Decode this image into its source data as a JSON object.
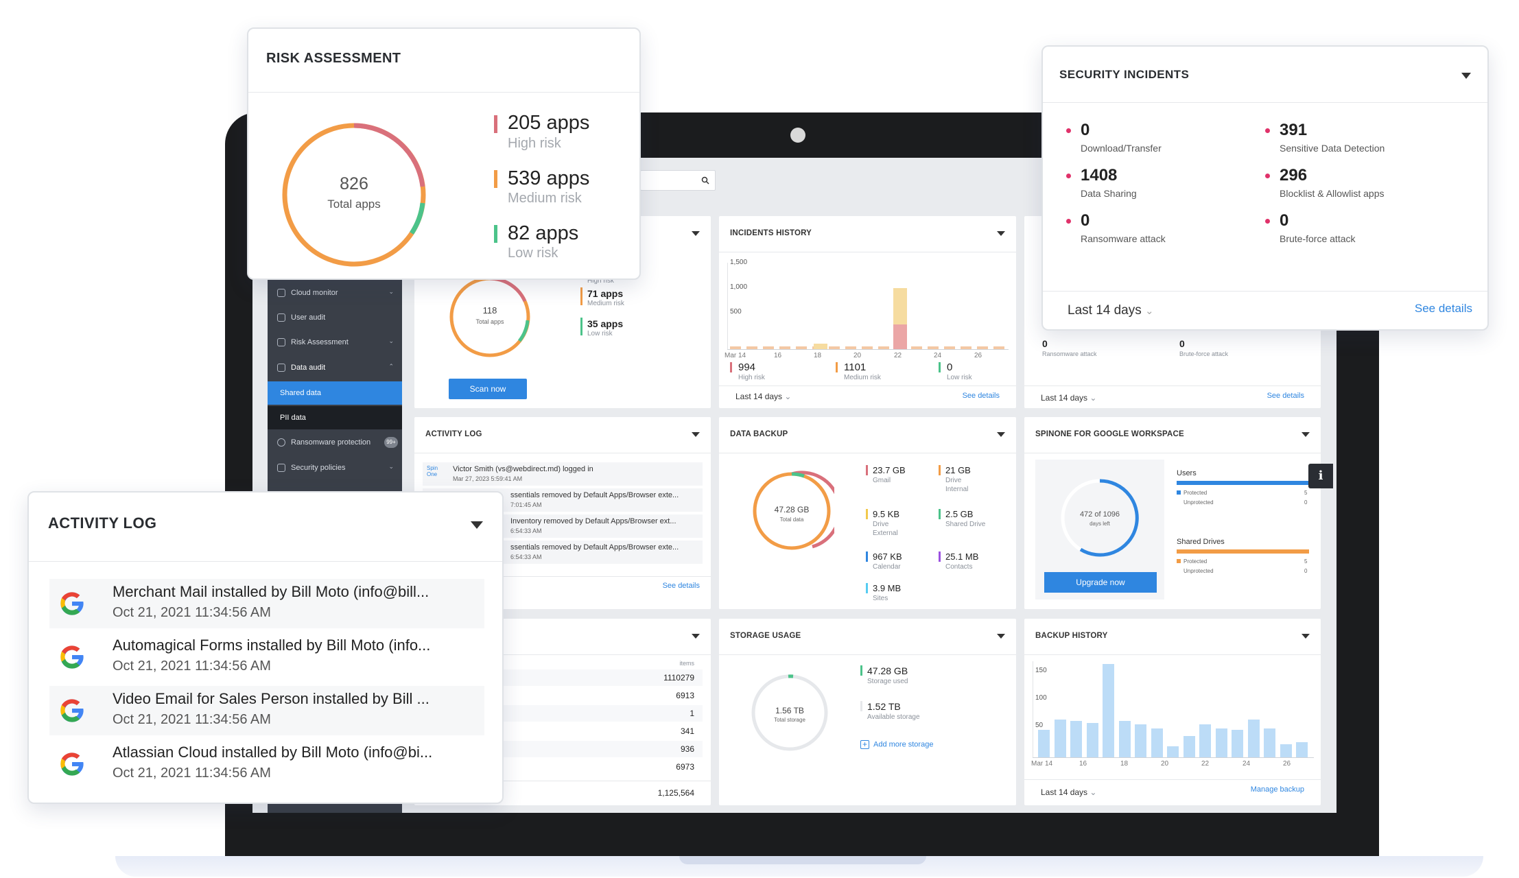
{
  "risk_popup": {
    "title": "RISK ASSESSMENT",
    "total_value": "826",
    "total_label": "Total apps",
    "items": [
      {
        "value": "205 apps",
        "label": "High risk",
        "color": "#d9707b"
      },
      {
        "value": "539 apps",
        "label": "Medium risk",
        "color": "#f29c46"
      },
      {
        "value": "82 apps",
        "label": "Low risk",
        "color": "#4cc38a"
      }
    ]
  },
  "security_popup": {
    "title": "SECURITY INCIDENTS",
    "items": [
      {
        "value": "0",
        "label": "Download/Transfer"
      },
      {
        "value": "391",
        "label": "Sensitive Data Detection"
      },
      {
        "value": "1408",
        "label": "Data Sharing"
      },
      {
        "value": "296",
        "label": "Blocklist & Allowlist apps"
      },
      {
        "value": "0",
        "label": "Ransomware attack"
      },
      {
        "value": "0",
        "label": "Brute-force attack"
      }
    ],
    "period": "Last 14 days",
    "see_details": "See details"
  },
  "activity_popup": {
    "title": "ACTIVITY LOG",
    "items": [
      {
        "text": "Merchant Mail installed by Bill Moto (info@bill...",
        "time": "Oct 21, 2021 11:34:56 AM"
      },
      {
        "text": "Automagical Forms installed by Bill Moto (info...",
        "time": "Oct 21, 2021 11:34:56 AM"
      },
      {
        "text": "Video Email for Sales Person installed by Bill ...",
        "time": "Oct 21, 2021 11:34:56 AM"
      },
      {
        "text": "Atlassian Cloud installed by Bill Moto (info@bi...",
        "time": "Oct 21, 2021 11:34:56 AM"
      }
    ]
  },
  "sidebar": {
    "items": [
      {
        "label": "Cloud monitor"
      },
      {
        "label": "User audit"
      },
      {
        "label": "Risk Assessment"
      },
      {
        "label": "Data audit"
      },
      {
        "label": "Shared data"
      },
      {
        "label": "PII data"
      },
      {
        "label": "Ransomware protection"
      },
      {
        "label": "Security policies"
      }
    ],
    "badge": "99+"
  },
  "risk_card": {
    "total_value": "118",
    "total_label": "Total apps",
    "partial_label": "High risk",
    "items": [
      {
        "value": "71 apps",
        "label": "Medium risk"
      },
      {
        "value": "35 apps",
        "label": "Low risk"
      }
    ],
    "scan_button": "Scan now"
  },
  "incidents_history": {
    "title": "INCIDENTS HISTORY",
    "y_ticks": [
      "1,500",
      "1,000",
      "500"
    ],
    "x_ticks": [
      "Mar 14",
      "16",
      "18",
      "20",
      "22",
      "24",
      "26"
    ],
    "stats": [
      {
        "value": "994",
        "label": "High risk"
      },
      {
        "value": "1101",
        "label": "Medium risk"
      },
      {
        "value": "0",
        "label": "Low risk"
      }
    ],
    "period": "Last 14 days",
    "see_details": "See details"
  },
  "security_card": {
    "items": [
      {
        "value": "0",
        "label": "Ransomware attack"
      },
      {
        "value": "0",
        "label": "Brute-force attack"
      }
    ],
    "period": "Last 14 days",
    "see_details": "See details"
  },
  "activity_card": {
    "title": "ACTIVITY LOG",
    "logo_text": "Spin One",
    "items": [
      {
        "text": "Victor Smith (vs@webdirect.md) logged in",
        "time": "Mar 27, 2023 5:59:41 AM"
      },
      {
        "text": "ssentials removed by Default Apps/Browser exte...",
        "time": "7:01:45 AM"
      },
      {
        "text": "Inventory removed by Default Apps/Browser ext...",
        "time": "6:54:33 AM"
      },
      {
        "text": "ssentials removed by Default Apps/Browser exte...",
        "time": "6:54:33 AM"
      }
    ],
    "see_details": "See details"
  },
  "data_backup": {
    "title": "DATA BACKUP",
    "total_value": "47.28 GB",
    "total_label": "Total data",
    "items": [
      {
        "value": "23.7 GB",
        "label": "Gmail",
        "label2": "",
        "color": "#d9707b"
      },
      {
        "value": "21 GB",
        "label": "Drive",
        "label2": "Internal",
        "color": "#f29c46"
      },
      {
        "value": "9.5 KB",
        "label": "Drive",
        "label2": "External",
        "color": "#f2c94c"
      },
      {
        "value": "2.5 GB",
        "label": "Shared Drive",
        "label2": "",
        "color": "#4cc38a"
      },
      {
        "value": "967 KB",
        "label": "Calendar",
        "label2": "",
        "color": "#2f86e0"
      },
      {
        "value": "25.1 MB",
        "label": "Contacts",
        "label2": "",
        "color": "#9b51e0"
      },
      {
        "value": "3.9 MB",
        "label": "Sites",
        "label2": "",
        "color": "#56ccf2"
      }
    ]
  },
  "workspace": {
    "title": "SPINONE FOR GOOGLE WORKSPACE",
    "days_value": "472 of 1096",
    "days_label": "days left",
    "upgrade_button": "Upgrade now",
    "users_title": "Users",
    "drives_title": "Shared Drives",
    "protected_label": "Protected",
    "unprotected_label": "Unprotected",
    "users_protected": "5",
    "users_unprotected": "0",
    "drives_protected": "5",
    "drives_unprotected": "0"
  },
  "items_card": {
    "header": "items",
    "values": [
      "1110279",
      "6913",
      "1",
      "341",
      "936",
      "6973"
    ],
    "total": "1,125,564"
  },
  "storage": {
    "title": "STORAGE USAGE",
    "total_value": "1.56 TB",
    "total_label": "Total storage",
    "used_value": "47.28 GB",
    "used_label": "Storage used",
    "available_value": "1.52 TB",
    "available_label": "Available storage",
    "add_link": "Add more storage"
  },
  "backup_history": {
    "title": "BACKUP HISTORY",
    "y_ticks": [
      "150",
      "100",
      "50"
    ],
    "x_ticks": [
      "Mar 14",
      "16",
      "18",
      "20",
      "22",
      "24",
      "26"
    ],
    "values": [
      45,
      62,
      60,
      57,
      155,
      60,
      55,
      48,
      18,
      35,
      55,
      48,
      45,
      62,
      48,
      22,
      25
    ],
    "period": "Last 14 days",
    "manage_link": "Manage backup"
  }
}
